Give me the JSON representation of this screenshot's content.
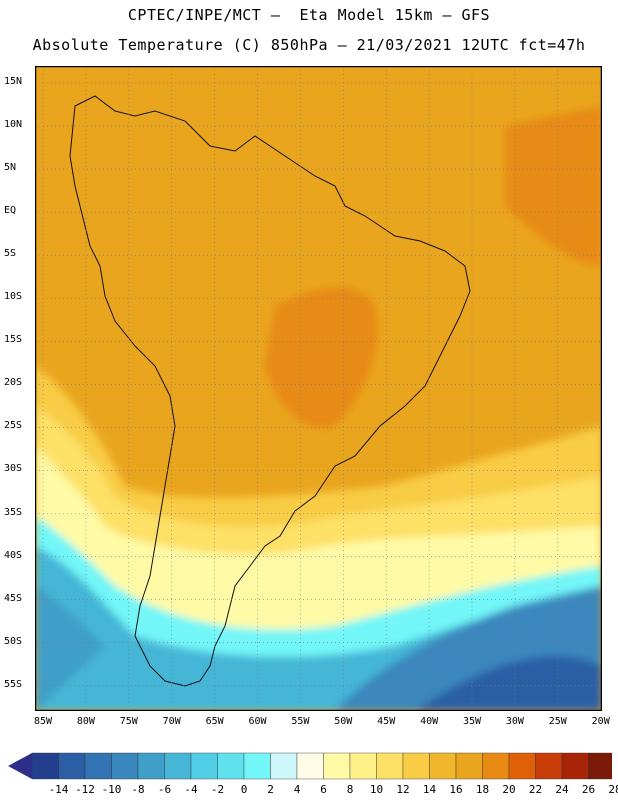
{
  "title_line1": "CPTEC/INPE/MCT –  Eta Model 15km – GFS",
  "title_line2": "Absolute Temperature (C) 850hPa – 21/03/2021 12UTC fct=47h",
  "lat_labels": [
    "15N",
    "10N",
    "5N",
    "EQ",
    "5S",
    "10S",
    "15S",
    "20S",
    "25S",
    "30S",
    "35S",
    "40S",
    "45S",
    "50S",
    "55S"
  ],
  "lon_labels": [
    "85W",
    "80W",
    "75W",
    "70W",
    "65W",
    "60W",
    "55W",
    "50W",
    "45W",
    "40W",
    "35W",
    "30W",
    "25W",
    "20W"
  ],
  "colorbar": {
    "labels": [
      "-14",
      "-12",
      "-10",
      "-8",
      "-6",
      "-4",
      "-2",
      "0",
      "2",
      "4",
      "6",
      "8",
      "10",
      "12",
      "14",
      "16",
      "18",
      "20",
      "22",
      "24",
      "26",
      "28"
    ],
    "colors": [
      "#243e8e",
      "#2c5ea6",
      "#3374b4",
      "#3a87be",
      "#3f9fc8",
      "#45b6d6",
      "#52cee6",
      "#5fe2ee",
      "#72f6f8",
      "#cdf7fb",
      "#fffbe6",
      "#fffaa6",
      "#fff088",
      "#fde066",
      "#f8cc44",
      "#f1b72c",
      "#eaa51e",
      "#e78a12",
      "#e06008",
      "#c83c08",
      "#a82408",
      "#7c1a0a"
    ],
    "under_color": "#2b2f8a",
    "over_color": "#760018"
  },
  "map": {
    "lon_min": -85.5,
    "lon_max": -19.5,
    "lat_min": -58.5,
    "lat_max": 17.5,
    "background": "#eaa51e"
  }
}
